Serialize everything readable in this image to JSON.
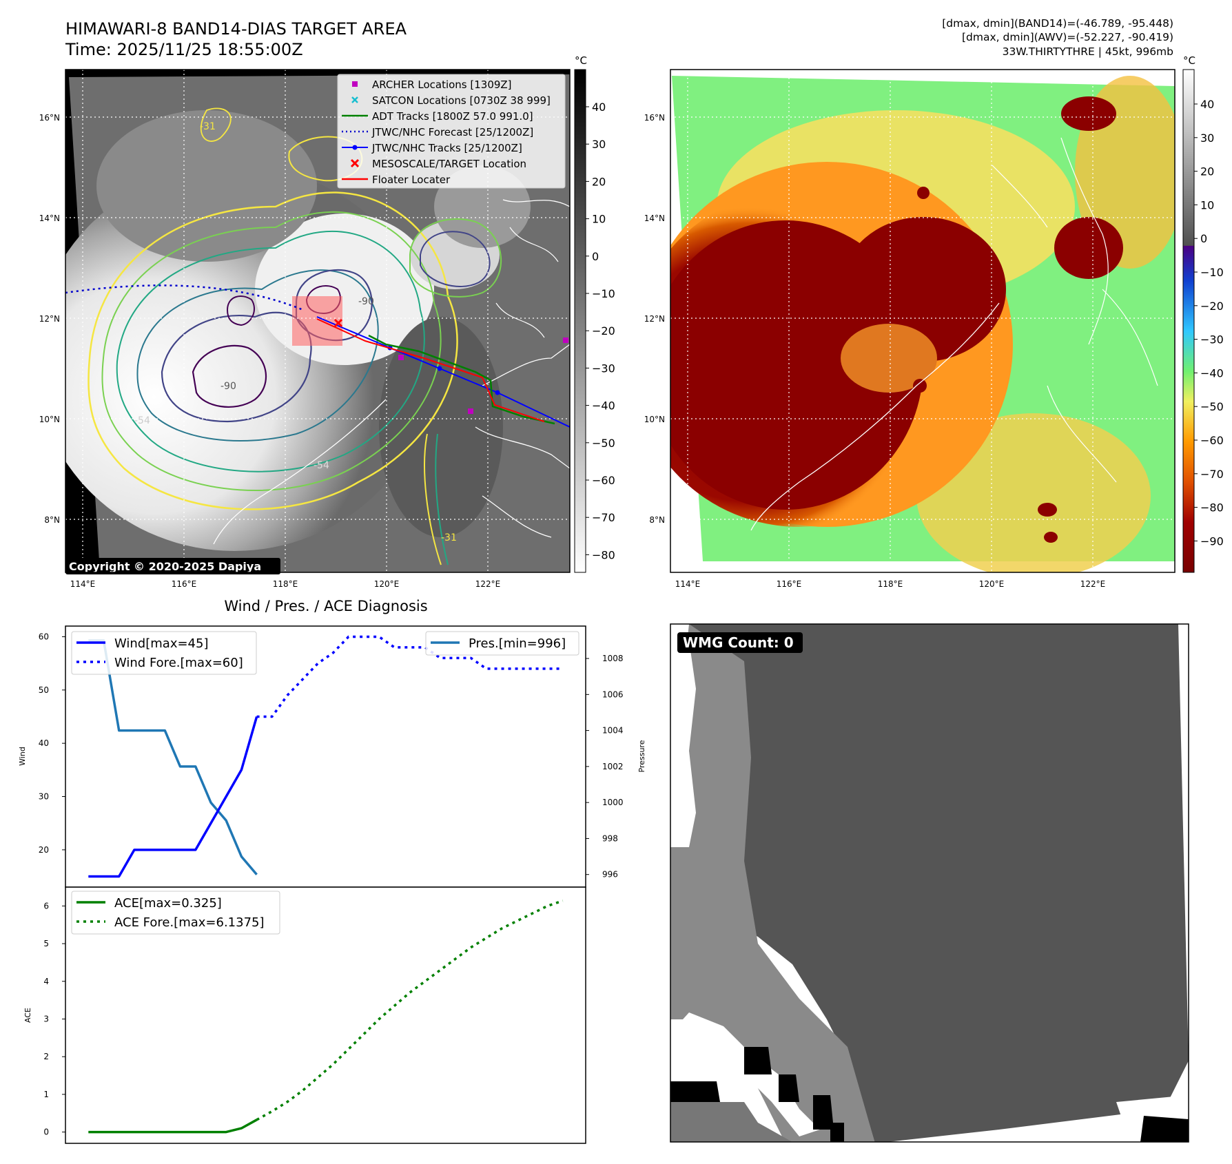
{
  "header": {
    "title_line1": "HIMAWARI-8 BAND14-DIAS TARGET AREA",
    "title_line2": "Time: 2025/11/25 18:55:00Z",
    "info_line1": "[dmax, dmin](BAND14)=(-46.789, -95.448)",
    "info_line2": "[dmax, dmin](AWV)=(-52.227, -90.419)",
    "info_line3": "33W.THIRTYTHRE | 45kt, 996mb"
  },
  "map_axes": {
    "lat_ticks": [
      "16°N",
      "14°N",
      "12°N",
      "10°N",
      "8°N"
    ],
    "lon_ticks": [
      "114°E",
      "116°E",
      "118°E",
      "120°E",
      "122°E"
    ],
    "copyright": "Copyright © 2020-2025 Dapiya",
    "contour_labels": [
      "-31",
      "-54",
      "-54",
      "-90",
      "-90",
      "-31"
    ]
  },
  "colorbar_left": {
    "unit": "°C",
    "ticks": [
      "40",
      "30",
      "20",
      "10",
      "0",
      "−10",
      "−20",
      "−30",
      "−40",
      "−50",
      "−60",
      "−70",
      "−80"
    ]
  },
  "colorbar_right": {
    "unit": "°C",
    "ticks": [
      "40",
      "30",
      "20",
      "10",
      "0",
      "−10",
      "−20",
      "−30",
      "−40",
      "−50",
      "−60",
      "−70",
      "−80",
      "−90"
    ]
  },
  "legend_map": [
    {
      "label": "ARCHER Locations [1309Z]",
      "color": "#c000c0",
      "marker": "square"
    },
    {
      "label": "SATCON Locations [0730Z 38 999]",
      "color": "#17becf",
      "marker": "x"
    },
    {
      "label": "ADT Tracks [1800Z 57.0 991.0]",
      "color": "#008000",
      "marker": "line"
    },
    {
      "label": "JTWC/NHC Forecast [25/1200Z]",
      "color": "#0000cc",
      "marker": "dotted"
    },
    {
      "label": "JTWC/NHC Tracks [25/1200Z]",
      "color": "#0000ff",
      "marker": "line-dot"
    },
    {
      "label": "MESOSCALE/TARGET Location",
      "color": "#ff0000",
      "marker": "x"
    },
    {
      "label": "Floater Locater",
      "color": "#ff0000",
      "marker": "line"
    }
  ],
  "diag": {
    "title": "Wind / Pres. / ACE Diagnosis",
    "wind_ylabel": "Wind",
    "pres_ylabel": "Pressure",
    "ace_ylabel": "ACE",
    "legend_wind": "Wind[max=45]",
    "legend_wind_fore": "Wind Fore.[max=60]",
    "legend_pres": "Pres.[min=996]",
    "legend_ace": "ACE[max=0.325]",
    "legend_ace_fore": "ACE Fore.[max=6.1375]"
  },
  "wmg": {
    "label": "WMG Count: 0"
  },
  "chart_data": [
    {
      "type": "line",
      "name": "wind-pressure",
      "x": [
        0,
        1,
        2,
        3,
        4,
        5,
        6,
        7,
        8,
        9,
        10,
        11,
        12,
        13,
        14,
        15,
        16,
        17,
        18,
        19,
        20,
        21,
        22,
        23,
        24,
        25,
        26,
        27,
        28,
        29,
        30,
        31
      ],
      "series": [
        {
          "name": "Wind[max=45]",
          "axis": "wind",
          "color": "#0000ff",
          "style": "solid",
          "points": [
            [
              0,
              15
            ],
            [
              2,
              15
            ],
            [
              3,
              20
            ],
            [
              7,
              20
            ],
            [
              8,
              25
            ],
            [
              9,
              30
            ],
            [
              10,
              35
            ],
            [
              11,
              45
            ]
          ]
        },
        {
          "name": "Wind Fore.[max=60]",
          "axis": "wind",
          "color": "#0000ff",
          "style": "dotted",
          "points": [
            [
              11,
              45
            ],
            [
              12,
              45
            ],
            [
              13,
              49
            ],
            [
              14,
              52
            ],
            [
              15,
              55
            ],
            [
              16,
              57
            ],
            [
              17,
              60
            ],
            [
              18,
              60
            ],
            [
              19,
              60
            ],
            [
              20,
              58
            ],
            [
              21,
              58
            ],
            [
              22,
              58
            ],
            [
              23,
              56
            ],
            [
              24,
              56
            ],
            [
              25,
              56
            ],
            [
              26,
              54
            ],
            [
              27,
              54
            ],
            [
              28,
              54
            ],
            [
              29,
              54
            ],
            [
              30,
              54
            ],
            [
              31,
              54
            ]
          ]
        },
        {
          "name": "Pres.[min=996]",
          "axis": "pres",
          "color": "#1f77b4",
          "style": "solid",
          "points": [
            [
              0,
              1009
            ],
            [
              1,
              1009
            ],
            [
              2,
              1004
            ],
            [
              3,
              1004
            ],
            [
              4,
              1004
            ],
            [
              5,
              1004
            ],
            [
              6,
              1002
            ],
            [
              7,
              1002
            ],
            [
              8,
              1000
            ],
            [
              9,
              999
            ],
            [
              10,
              997
            ],
            [
              11,
              996
            ]
          ]
        }
      ],
      "wind_ylim": [
        13,
        62
      ],
      "wind_ticks": [
        20,
        30,
        40,
        50,
        60
      ],
      "pres_ylim": [
        995.3,
        1009.8
      ],
      "pres_ticks": [
        996,
        998,
        1000,
        1002,
        1004,
        1006,
        1008
      ],
      "xlim": [
        -1.5,
        32.5
      ]
    },
    {
      "type": "line",
      "name": "ace",
      "series": [
        {
          "name": "ACE[max=0.325]",
          "color": "#008000",
          "style": "solid",
          "points": [
            [
              0,
              0
            ],
            [
              9,
              0
            ],
            [
              10,
              0.1
            ],
            [
              11,
              0.325
            ]
          ]
        },
        {
          "name": "ACE Fore.[max=6.1375]",
          "color": "#008000",
          "style": "dotted",
          "points": [
            [
              11,
              0.325
            ],
            [
              12,
              0.55
            ],
            [
              13,
              0.8
            ],
            [
              14,
              1.1
            ],
            [
              15,
              1.45
            ],
            [
              16,
              1.8
            ],
            [
              17,
              2.2
            ],
            [
              18,
              2.6
            ],
            [
              19,
              3.0
            ],
            [
              20,
              3.35
            ],
            [
              21,
              3.7
            ],
            [
              22,
              4.0
            ],
            [
              23,
              4.3
            ],
            [
              24,
              4.6
            ],
            [
              25,
              4.9
            ],
            [
              26,
              5.15
            ],
            [
              27,
              5.4
            ],
            [
              28,
              5.6
            ],
            [
              29,
              5.8
            ],
            [
              30,
              6.0
            ],
            [
              31,
              6.1375
            ]
          ]
        }
      ],
      "ylim": [
        -0.3,
        6.5
      ],
      "yticks": [
        0,
        1,
        2,
        3,
        4,
        5,
        6
      ],
      "xlim": [
        -1.5,
        32.5
      ]
    }
  ]
}
